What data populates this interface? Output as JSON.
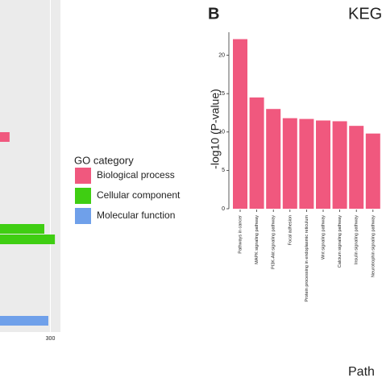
{
  "panel_label": "B",
  "chart_data": [
    {
      "type": "barh",
      "categories": [
        null,
        null,
        null,
        null
      ],
      "series": [
        {
          "name": "Biological process",
          "color": "#f0587e",
          "values": [
            219,
            null,
            null,
            null
          ]
        },
        {
          "name": "Cellular component",
          "color": "#3fce12",
          "values": [
            null,
            288,
            309,
            null
          ]
        },
        {
          "name": "Molecular function",
          "color": "#6fa0ea",
          "values": [
            null,
            null,
            null,
            296
          ]
        }
      ],
      "xlim": [
        200,
        320
      ],
      "xticks": [
        300
      ],
      "legend_title": "GO category",
      "grid": true
    },
    {
      "type": "bar",
      "title": "KEG",
      "y_label": "-log10 (P-value)",
      "x_label": "Path",
      "categories": [
        "Pathways in cancer",
        "MAPK signaling pathway",
        "PI3K-Akt signaling pathway",
        "Focal adhesion",
        "Protein processing in endoplasmic reticulum",
        "Wnt signaling pathway",
        "Calcium signaling pathway",
        "Insulin signaling pathway",
        "Neurotrophin signaling pathway"
      ],
      "values": [
        22.1,
        14.5,
        13,
        11.8,
        11.7,
        11.5,
        11.4,
        10.8,
        9.8
      ],
      "color": "#f0587e",
      "ylim": [
        0,
        23
      ],
      "yticks": [
        0,
        5,
        10,
        15,
        20
      ]
    }
  ]
}
